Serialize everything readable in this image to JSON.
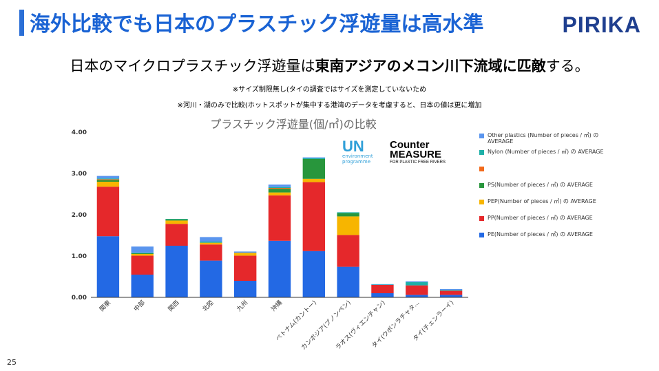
{
  "header": {
    "title": "海外比較でも日本のプラスチック浮遊量は高水準",
    "brand": "PIRIKA"
  },
  "subtitle": {
    "plain": "日本のマイクロプラスチック浮遊量は",
    "bold": "東南アジアのメコン川下流域に匹敵",
    "end": "する。"
  },
  "notes": {
    "note1": "※サイズ制限無し(タイの調査ではサイズを測定していないため",
    "note2": "※河川・湖のみで比較(ホットスポットが集中する港湾のデータを考慮すると、日本の値は更に増加"
  },
  "logos": {
    "un_main": "UN",
    "un_line1": "environment",
    "un_line2": "programme",
    "cm_line1": "Counter",
    "cm_line2": "MEASURE",
    "cm_line3": "FOR PLASTIC FREE RIVERS"
  },
  "page_number": "25",
  "chart_data": {
    "type": "bar",
    "stacked": true,
    "title": "プラスチック浮遊量(個/㎥)の比較",
    "xlabel": "",
    "ylabel": "",
    "ylim": [
      0,
      4
    ],
    "yticks": [
      "0.00",
      "1.00",
      "2.00",
      "3.00",
      "4.00"
    ],
    "grid": false,
    "legend_position": "right",
    "categories": [
      "関東",
      "中部",
      "関西",
      "北陸",
      "九州",
      "沖縄",
      "ベトナム(カントー)",
      "カンボジア(プノンペン)",
      "ラオス(ヴィエンチャン)",
      "タイ(ウボンラチャタ...",
      "タイ(チェンラーイ)"
    ],
    "series": [
      {
        "name": "PE(Number of pieces / ㎥) の AVERAGE",
        "color": "#2369e4",
        "values": [
          1.48,
          0.55,
          1.25,
          0.89,
          0.4,
          1.37,
          1.12,
          0.74,
          0.1,
          0.06,
          0.06
        ]
      },
      {
        "name": "PP(Number of pieces / ㎥) の AVERAGE",
        "color": "#e5282b",
        "values": [
          1.2,
          0.46,
          0.53,
          0.39,
          0.61,
          1.1,
          1.67,
          0.77,
          0.2,
          0.23,
          0.1
        ]
      },
      {
        "name": "PEP(Number of pieces / ㎥) の AVERAGE",
        "color": "#f7b500",
        "values": [
          0.12,
          0.04,
          0.08,
          0.04,
          0.07,
          0.07,
          0.08,
          0.45,
          0.0,
          0.0,
          0.0
        ]
      },
      {
        "name": "PS(Number of pieces / ㎥) の AVERAGE",
        "color": "#28963c",
        "values": [
          0.04,
          0.02,
          0.03,
          0.01,
          0.0,
          0.09,
          0.48,
          0.08,
          0.0,
          0.0,
          0.0
        ]
      },
      {
        "name": "",
        "color": "#f26a1b",
        "values": [
          0.02,
          0.0,
          0.0,
          0.0,
          0.0,
          0.02,
          0.0,
          0.0,
          0.0,
          0.0,
          0.0
        ]
      },
      {
        "name": "Nylon (Number of pieces / ㎥) の AVERAGE",
        "color": "#1eb0a8",
        "values": [
          0.02,
          0.01,
          0.01,
          0.02,
          0.0,
          0.02,
          0.02,
          0.02,
          0.01,
          0.08,
          0.02
        ]
      },
      {
        "name": "Other plastics (Number of pieces / ㎥) の AVERAGE",
        "color": "#5a95ee",
        "values": [
          0.06,
          0.15,
          0.0,
          0.11,
          0.03,
          0.06,
          0.02,
          0.0,
          0.01,
          0.02,
          0.02
        ]
      }
    ]
  }
}
